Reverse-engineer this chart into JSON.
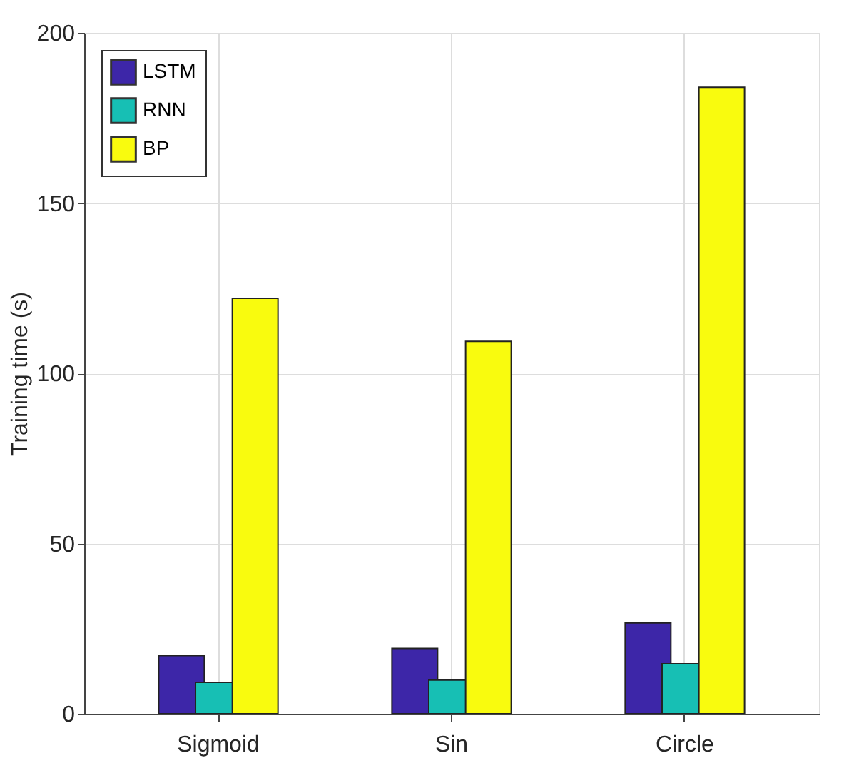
{
  "chart_data": {
    "type": "bar",
    "ylabel": "Training time (s)",
    "categories": [
      "Sigmoid",
      "Sin",
      "Circle"
    ],
    "series": [
      {
        "name": "LSTM",
        "color": "#3d26a8",
        "values": [
          17.1,
          19.2,
          26.7
        ]
      },
      {
        "name": "RNN",
        "color": "#17bfb4",
        "values": [
          9.2,
          9.9,
          14.7
        ]
      },
      {
        "name": "BP",
        "color": "#f9fb0e",
        "values": [
          122,
          109.4,
          184
        ]
      }
    ],
    "ylim": [
      0,
      200
    ],
    "yticks": [
      0,
      50,
      100,
      150,
      200
    ],
    "grid": true,
    "legend": "top left"
  }
}
